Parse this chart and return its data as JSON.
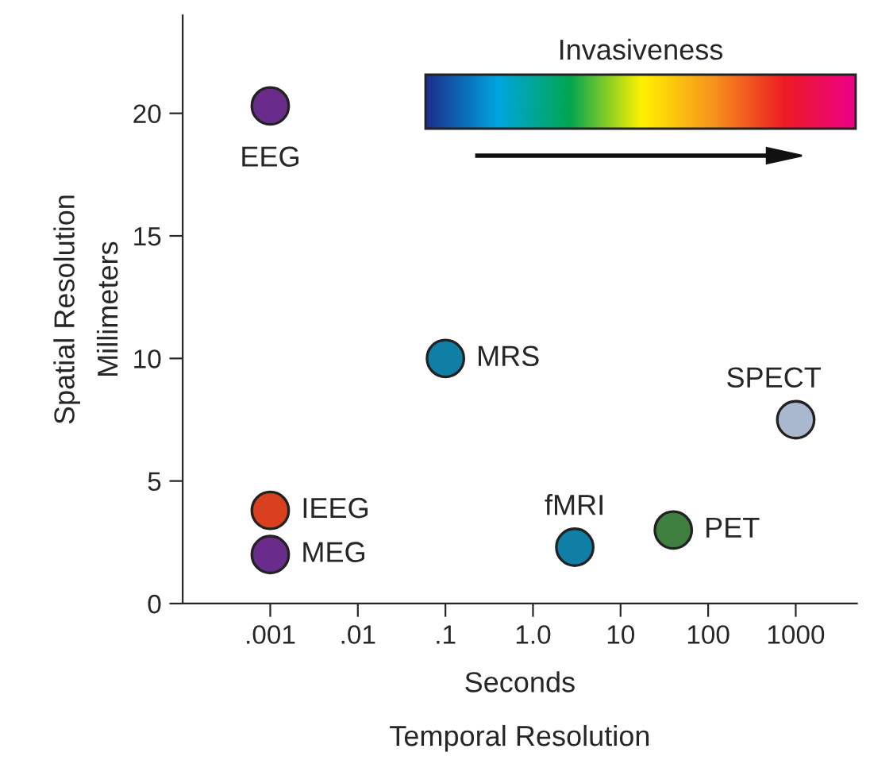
{
  "chart_data": {
    "type": "scatter",
    "xlabel": "Seconds\nTemporal Resolution",
    "ylabel": "Spatial Resolution\nMillimeters",
    "log": "x",
    "xlim": [
      0.0001,
      5000
    ],
    "xticks": [
      {
        "value": 0.001,
        "label": ".001"
      },
      {
        "value": 0.01,
        "label": ".01"
      },
      {
        "value": 0.1,
        "label": ".1"
      },
      {
        "value": 1,
        "label": "1.0"
      },
      10,
      100,
      1000
    ],
    "ylim": [
      0,
      24
    ],
    "yticks": [
      0,
      5,
      10,
      15,
      20
    ],
    "grid": false,
    "legend": false,
    "marker": "circle",
    "annotations": [
      "Invasiveness"
    ],
    "series": [
      {
        "x": [
          0.001,
          0.1,
          1000,
          40,
          3,
          0.001,
          0.001
        ],
        "values": [
          20.3,
          10,
          7.5,
          3,
          2.3,
          3.8,
          2
        ],
        "colors": [
          "#6a2c8a",
          "#0f7fa6",
          "#a9b8cf",
          "#3f7f3f",
          "#0f7fa6",
          "#d8401f",
          "#6a2c8a"
        ],
        "value_labels": [
          "EEG",
          "MRS",
          "SPECT",
          "PET",
          "fMRI",
          "IEEG",
          "MEG"
        ]
      }
    ]
  }
}
